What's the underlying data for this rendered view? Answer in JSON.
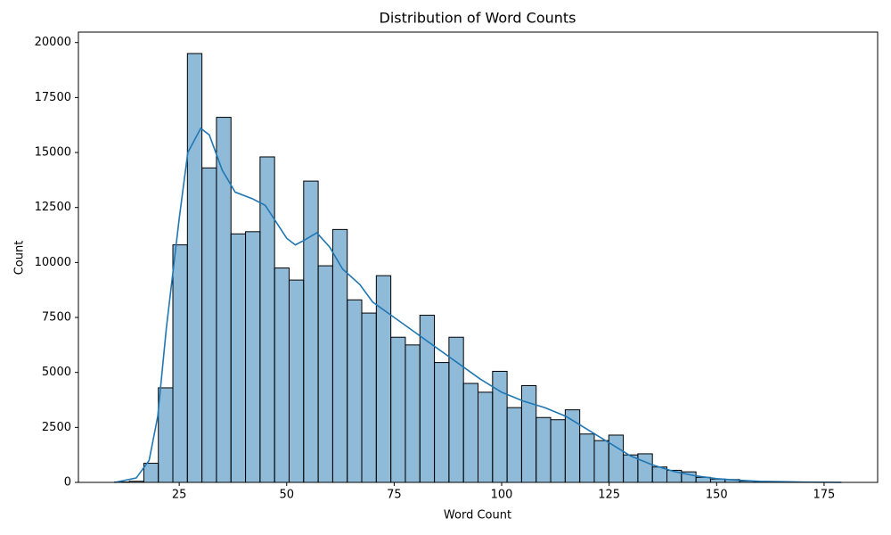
{
  "chart_data": {
    "type": "histogram",
    "title": "Distribution of Word Counts",
    "x_label": "Word Count",
    "y_label": "Count",
    "color": "#1f77b4",
    "bins": [
      10,
      13.38,
      16.76,
      20.14,
      23.52,
      26.9,
      30.28,
      33.66,
      37.04,
      40.42,
      43.8,
      47.18,
      50.56,
      53.94,
      57.32,
      60.7,
      64.08,
      67.46,
      70.84,
      74.22,
      77.6,
      80.98,
      84.36,
      87.74,
      91.12,
      94.5,
      97.88,
      101.26,
      104.64,
      108.02,
      111.4,
      114.78,
      118.16,
      121.54,
      124.92,
      128.3,
      131.68,
      135.06,
      138.44,
      141.82,
      145.2,
      148.58,
      151.96,
      155.34,
      158.72,
      162.1,
      165.48,
      168.86,
      172.24,
      175.62,
      179
    ],
    "values": [
      20,
      50,
      870,
      4300,
      10800,
      19500,
      14300,
      16600,
      11300,
      11400,
      14800,
      9750,
      9200,
      13700,
      9850,
      11500,
      8300,
      7700,
      9400,
      6600,
      6250,
      7600,
      5450,
      6600,
      4500,
      4100,
      5050,
      3400,
      4400,
      2950,
      2850,
      3300,
      2200,
      1900,
      2150,
      1250,
      1300,
      700,
      550,
      480,
      230,
      150,
      130,
      60,
      40,
      20,
      15,
      10,
      5,
      3
    ],
    "kde": {
      "x": [
        10,
        15,
        18,
        20,
        22,
        25,
        27,
        30,
        32,
        35,
        38,
        42,
        45,
        48,
        50,
        52,
        54,
        57,
        60,
        63,
        67,
        70,
        75,
        80,
        85,
        90,
        95,
        100,
        105,
        110,
        115,
        120,
        125,
        130,
        135,
        140,
        145,
        150,
        155,
        160,
        170,
        179
      ],
      "values": [
        0,
        200,
        1000,
        3000,
        7000,
        12000,
        15000,
        16100,
        15800,
        14200,
        13200,
        12900,
        12600,
        11700,
        11100,
        10800,
        11000,
        11350,
        10700,
        9700,
        9000,
        8200,
        7500,
        6800,
        6100,
        5400,
        4700,
        4100,
        3700,
        3400,
        3000,
        2400,
        1800,
        1200,
        800,
        500,
        300,
        170,
        100,
        50,
        15,
        0
      ]
    },
    "xlim": [
      1.55,
      187.45
    ],
    "ylim": [
      0,
      20475
    ],
    "xticks": [
      25,
      50,
      75,
      100,
      125,
      150,
      175
    ],
    "yticks": [
      0,
      2500,
      5000,
      7500,
      10000,
      12500,
      15000,
      17500,
      20000
    ]
  }
}
